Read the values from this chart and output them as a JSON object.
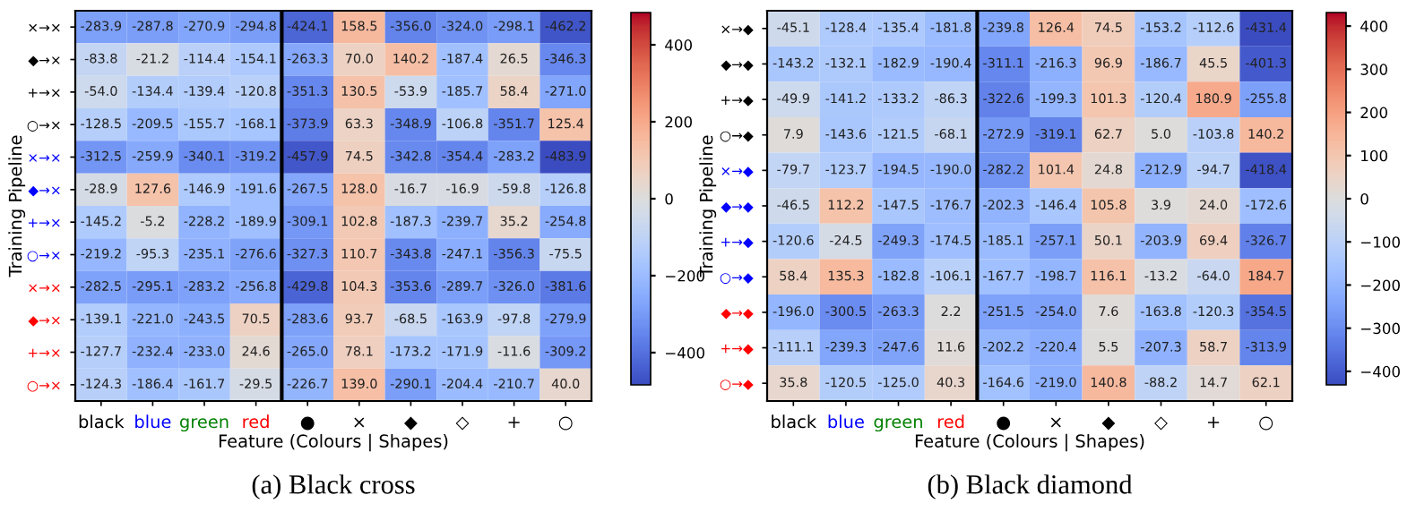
{
  "chart_data": [
    {
      "type": "heatmap",
      "title": "(a) Black cross",
      "xlabel": "Feature (Colours | Shapes)",
      "ylabel": "Training Pipeline",
      "categories": [
        "black",
        "blue",
        "green",
        "red",
        "●",
        "×",
        "◆",
        "◇",
        "+",
        "○"
      ],
      "y_categories": [
        "×→×",
        "◆→×",
        "+→×",
        "○→×",
        "×→×",
        "◆→×",
        "+→×",
        "○→×",
        "×→×",
        "◆→×",
        "+→×",
        "○→×"
      ],
      "cells": [
        [
          -283.9,
          -287.8,
          -270.9,
          -294.8,
          -424.1,
          158.5,
          -356.0,
          -324.0,
          -298.1,
          -462.2
        ],
        [
          -83.8,
          -21.2,
          -114.4,
          -154.1,
          -263.3,
          70.0,
          140.2,
          -187.4,
          26.5,
          -346.3
        ],
        [
          -54.0,
          -134.4,
          -139.4,
          -120.8,
          -351.3,
          130.5,
          -53.9,
          -185.7,
          58.4,
          -271.0
        ],
        [
          -128.5,
          -209.5,
          -155.7,
          -168.1,
          -373.9,
          63.3,
          -348.9,
          -106.8,
          -351.7,
          125.4
        ],
        [
          -312.5,
          -259.9,
          -340.1,
          -319.2,
          -457.9,
          74.5,
          -342.8,
          -354.4,
          -283.2,
          -483.9
        ],
        [
          -28.9,
          127.6,
          -146.9,
          -191.6,
          -267.5,
          128.0,
          -16.7,
          -16.9,
          -59.8,
          -126.8
        ],
        [
          -145.2,
          -5.2,
          -228.2,
          -189.9,
          -309.1,
          102.8,
          -187.3,
          -239.7,
          35.2,
          -254.8
        ],
        [
          -219.2,
          -95.3,
          -235.1,
          -276.6,
          -327.3,
          110.7,
          -343.8,
          -247.1,
          -356.3,
          -75.5
        ],
        [
          -282.5,
          -295.1,
          -283.2,
          -256.8,
          -429.8,
          104.3,
          -353.6,
          -289.7,
          -326.0,
          -381.6
        ],
        [
          -139.1,
          -221.0,
          -243.5,
          70.5,
          -283.6,
          93.7,
          -68.5,
          -163.9,
          -97.8,
          -279.9
        ],
        [
          -127.7,
          -232.4,
          -233.0,
          24.6,
          -265.0,
          78.1,
          -173.2,
          -171.9,
          -11.6,
          -309.2
        ],
        [
          -124.3,
          -186.4,
          -161.7,
          -29.5,
          -226.7,
          139.0,
          -290.1,
          -204.4,
          -210.7,
          40.0
        ]
      ],
      "cell_labels": [
        [
          "-283.9",
          "-287.8",
          "-270.9",
          "-294.8",
          "-424.1",
          "158.5",
          "-356.0",
          "-324.0",
          "-298.1",
          "-462.2"
        ],
        [
          "-83.8",
          "-21.2",
          "-114.4",
          "-154.1",
          "-263.3",
          "70.0",
          "140.2",
          "-187.4",
          "26.5",
          "-346.3"
        ],
        [
          "-54.0",
          "-134.4",
          "-139.4",
          "-120.8",
          "-351.3",
          "130.5",
          "-53.9",
          "-185.7",
          "58.4",
          "-271.0"
        ],
        [
          "-128.5",
          "-209.5",
          "-155.7",
          "-168.1",
          "-373.9",
          "63.3",
          "-348.9",
          "-106.8",
          "-351.7",
          "125.4"
        ],
        [
          "-312.5",
          "-259.9",
          "-340.1",
          "-319.2",
          "-457.9",
          "74.5",
          "-342.8",
          "-354.4",
          "-283.2",
          "-483.9"
        ],
        [
          "-28.9",
          "127.6",
          "-146.9",
          "-191.6",
          "-267.5",
          "128.0",
          "-16.7",
          "-16.9",
          "-59.8",
          "-126.8"
        ],
        [
          "-145.2",
          "-5.2",
          "-228.2",
          "-189.9",
          "-309.1",
          "102.8",
          "-187.3",
          "-239.7",
          "35.2",
          "-254.8"
        ],
        [
          "-219.2",
          "-95.3",
          "-235.1",
          "-276.6",
          "-327.3",
          "110.7",
          "-343.8",
          "-247.1",
          "-356.3",
          "-75.5"
        ],
        [
          "-282.5",
          "-295.1",
          "-283.2",
          "-256.8",
          "-429.8",
          "104.3",
          "-353.6",
          "-289.7",
          "-326.0",
          "-381.6"
        ],
        [
          "-139.1",
          "-221.0",
          "-243.5",
          "70.5",
          "-283.6",
          "93.7",
          "-68.5",
          "-163.9",
          "-97.8",
          "-279.9"
        ],
        [
          "-127.7",
          "-232.4",
          "-233.0",
          "24.6",
          "-265.0",
          "78.1",
          "-173.2",
          "-171.9",
          "-11.6",
          "-309.2"
        ],
        [
          "-124.3",
          "-186.4",
          "-161.7",
          "-29.5",
          "-226.7",
          "139.0",
          "-290.1",
          "-204.4",
          "-210.7",
          "40.0"
        ]
      ],
      "clim": [
        -483.9,
        483.9
      ],
      "cticks": [
        -400,
        -200,
        0,
        200,
        400
      ]
    },
    {
      "type": "heatmap",
      "title": "(b) Black diamond",
      "xlabel": "Feature (Colours | Shapes)",
      "ylabel": "Training Pipeline",
      "categories": [
        "black",
        "blue",
        "green",
        "red",
        "●",
        "×",
        "◆",
        "◇",
        "+",
        "○"
      ],
      "y_categories": [
        "×→◆",
        "◆→◆",
        "+→◆",
        "○→◆",
        "×→◆",
        "◆→◆",
        "+→◆",
        "○→◆",
        "◆→◆",
        "+→◆",
        "○→◆"
      ],
      "cells": [
        [
          -45.1,
          -128.4,
          -135.4,
          -181.8,
          -239.8,
          126.4,
          74.5,
          -153.2,
          -112.6,
          -431.4
        ],
        [
          -143.2,
          -132.1,
          -182.9,
          -190.4,
          -311.1,
          -216.3,
          96.9,
          -186.7,
          45.5,
          -401.3
        ],
        [
          -49.9,
          -141.2,
          -133.2,
          -86.3,
          -322.6,
          -199.3,
          101.3,
          -120.4,
          180.9,
          -255.8
        ],
        [
          7.9,
          -143.6,
          -121.5,
          -68.1,
          -272.9,
          -319.1,
          62.7,
          5.0,
          -103.8,
          140.2
        ],
        [
          -79.7,
          -123.7,
          -194.5,
          -190.0,
          -282.2,
          101.4,
          24.8,
          -212.9,
          -94.7,
          -418.4
        ],
        [
          -46.5,
          112.2,
          -147.5,
          -176.7,
          -202.3,
          -146.4,
          105.8,
          3.9,
          24.0,
          -172.6
        ],
        [
          -120.6,
          -24.5,
          -249.3,
          -174.5,
          -185.1,
          -257.1,
          50.1,
          -203.9,
          69.4,
          -326.7
        ],
        [
          58.4,
          135.3,
          -182.8,
          -106.1,
          -167.7,
          -198.7,
          116.1,
          -13.2,
          -64.0,
          184.7
        ],
        [
          -196.0,
          -300.5,
          -263.3,
          2.2,
          -251.5,
          -254.0,
          7.6,
          -163.8,
          -120.3,
          -354.5
        ],
        [
          -111.1,
          -239.3,
          -247.6,
          11.6,
          -202.2,
          -220.4,
          5.5,
          -207.3,
          58.7,
          -313.9
        ],
        [
          35.8,
          -120.5,
          -125.0,
          40.3,
          -164.6,
          -219.0,
          140.8,
          -88.2,
          14.7,
          62.1
        ]
      ],
      "cell_labels": [
        [
          "-45.1",
          "-128.4",
          "-135.4",
          "-181.8",
          "-239.8",
          "126.4",
          "74.5",
          "-153.2",
          "-112.6",
          "-431.4"
        ],
        [
          "-143.2",
          "-132.1",
          "-182.9",
          "-190.4",
          "-311.1",
          "-216.3",
          "96.9",
          "-186.7",
          "45.5",
          "-401.3"
        ],
        [
          "-49.9",
          "-141.2",
          "-133.2",
          "-86.3",
          "-322.6",
          "-199.3",
          "101.3",
          "-120.4",
          "180.9",
          "-255.8"
        ],
        [
          "7.9",
          "-143.6",
          "-121.5",
          "-68.1",
          "-272.9",
          "-319.1",
          "62.7",
          "5.0",
          "-103.8",
          "140.2"
        ],
        [
          "-79.7",
          "-123.7",
          "-194.5",
          "-190.0",
          "-282.2",
          "101.4",
          "24.8",
          "-212.9",
          "-94.7",
          "-418.4"
        ],
        [
          "-46.5",
          "112.2",
          "-147.5",
          "-176.7",
          "-202.3",
          "-146.4",
          "105.8",
          "3.9",
          "24.0",
          "-172.6"
        ],
        [
          "-120.6",
          "-24.5",
          "-249.3",
          "-174.5",
          "-185.1",
          "-257.1",
          "50.1",
          "-203.9",
          "69.4",
          "-326.7"
        ],
        [
          "58.4",
          "135.3",
          "-182.8",
          "-106.1",
          "-167.7",
          "-198.7",
          "116.1",
          "-13.2",
          "-64.0",
          "184.7"
        ],
        [
          "-196.0",
          "-300.5",
          "-263.3",
          "2.2",
          "-251.5",
          "-254.0",
          "7.6",
          "-163.8",
          "-120.3",
          "-354.5"
        ],
        [
          "-111.1",
          "-239.3",
          "-247.6",
          "11.6",
          "-202.2",
          "-220.4",
          "5.5",
          "-207.3",
          "58.7",
          "-313.9"
        ],
        [
          "35.8",
          "-120.5",
          "-125.0",
          "40.3",
          "-164.6",
          "-219.0",
          "140.8",
          "-88.2",
          "14.7",
          "62.1"
        ]
      ],
      "clim": [
        -431.4,
        431.4
      ],
      "cticks": [
        -400,
        -300,
        -200,
        -100,
        0,
        100,
        200,
        300,
        400
      ]
    }
  ]
}
